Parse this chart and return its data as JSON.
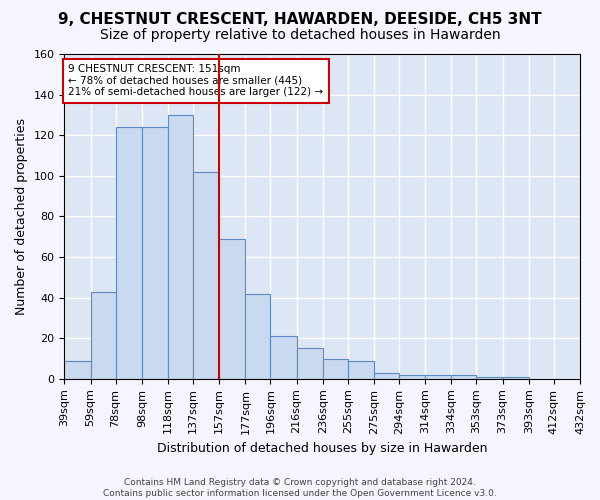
{
  "title": "9, CHESTNUT CRESCENT, HAWARDEN, DEESIDE, CH5 3NT",
  "subtitle": "Size of property relative to detached houses in Hawarden",
  "xlabel": "Distribution of detached houses by size in Hawarden",
  "ylabel": "Number of detached properties",
  "bar_labels": [
    "39sqm",
    "59sqm",
    "78sqm",
    "98sqm",
    "118sqm",
    "137sqm",
    "157sqm",
    "177sqm",
    "196sqm",
    "216sqm",
    "236sqm",
    "255sqm",
    "275sqm",
    "294sqm",
    "314sqm",
    "334sqm",
    "353sqm",
    "373sqm",
    "393sqm",
    "412sqm",
    "432sqm"
  ],
  "bin_edges": [
    39,
    59,
    78,
    98,
    118,
    137,
    157,
    177,
    196,
    216,
    236,
    255,
    275,
    294,
    314,
    334,
    353,
    373,
    393,
    412,
    432
  ],
  "counts": [
    9,
    43,
    124,
    124,
    130,
    102,
    69,
    42,
    21,
    15,
    10,
    9,
    3,
    2,
    2,
    2,
    1,
    1,
    0,
    0
  ],
  "bar_color": "#c9d9f0",
  "bar_edge_color": "#5b8ac7",
  "vline_x": 157,
  "vline_color": "#cc0000",
  "annotation_text": "9 CHESTNUT CRESCENT: 151sqm\n← 78% of detached houses are smaller (445)\n21% of semi-detached houses are larger (122) →",
  "annotation_box_color": "white",
  "annotation_box_edge": "#cc0000",
  "ylim": [
    0,
    160
  ],
  "yticks": [
    0,
    20,
    40,
    60,
    80,
    100,
    120,
    140,
    160
  ],
  "footnote": "Contains HM Land Registry data © Crown copyright and database right 2024.\nContains public sector information licensed under the Open Government Licence v3.0.",
  "bg_color": "#dde6f5",
  "grid_color": "#ffffff",
  "title_fontsize": 11,
  "subtitle_fontsize": 10,
  "axis_label_fontsize": 9,
  "tick_fontsize": 8
}
